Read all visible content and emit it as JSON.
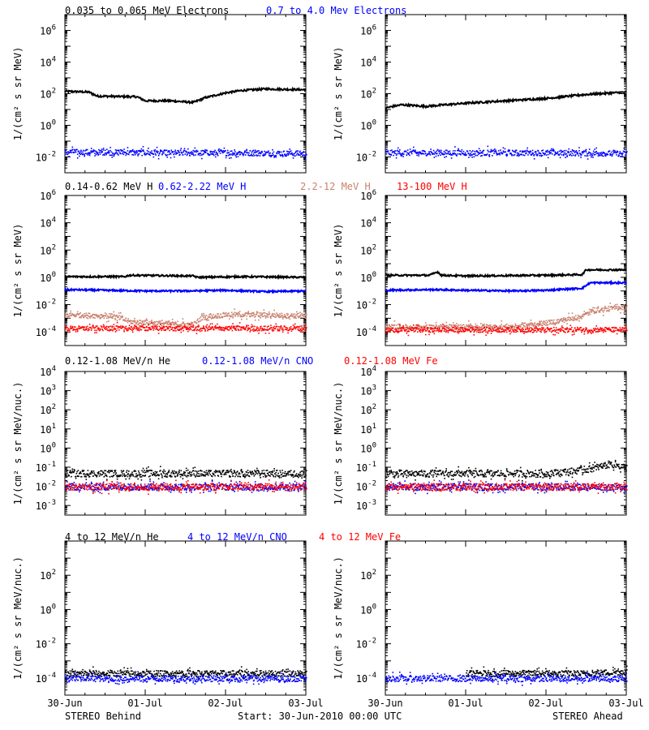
{
  "colors": {
    "black": "#000000",
    "blue": "#0000ff",
    "tan": "#c8826e",
    "red": "#ff0000"
  },
  "footer": {
    "left": "STEREO Behind",
    "center": "Start: 30-Jun-2010 00:00 UTC",
    "right": "STEREO Ahead"
  },
  "x_ticks": [
    "30-Jun",
    "01-Jul",
    "02-Jul",
    "03-Jul"
  ],
  "rows": [
    {
      "legend": [
        {
          "text": "0.035 to 0.065 MeV Electrons",
          "color": "black"
        },
        {
          "text": "0.7 to 4.0 Mev Electrons",
          "color": "blue"
        }
      ],
      "ylabel": "1/(cm² s sr MeV)",
      "ylog": [
        -3,
        7
      ],
      "ytick_exps": [
        -2,
        0,
        2,
        4,
        6
      ]
    },
    {
      "legend": [
        {
          "text": "0.14-0.62 MeV H",
          "color": "black"
        },
        {
          "text": "0.62-2.22 MeV H",
          "color": "blue"
        },
        {
          "text": "2.2-12 MeV H",
          "color": "tan"
        },
        {
          "text": "13-100 MeV H",
          "color": "red"
        }
      ],
      "ylabel": "1/(cm² s sr MeV)",
      "ylog": [
        -5,
        6
      ],
      "ytick_exps": [
        -4,
        -2,
        0,
        2,
        4,
        6
      ]
    },
    {
      "legend": [
        {
          "text": "0.12-1.08 MeV/n He",
          "color": "black"
        },
        {
          "text": "0.12-1.08 MeV/n CNO",
          "color": "blue"
        },
        {
          "text": "0.12-1.08 MeV Fe",
          "color": "red"
        }
      ],
      "ylabel": "1/(cm² s sr MeV/nuc.)",
      "ylog": [
        -3.5,
        4
      ],
      "ytick_exps": [
        -3,
        -2,
        -1,
        0,
        1,
        2,
        3,
        4
      ]
    },
    {
      "legend": [
        {
          "text": "4 to 12 MeV/n He",
          "color": "black"
        },
        {
          "text": "4 to 12 MeV/n CNO",
          "color": "blue"
        },
        {
          "text": "4 to 12 MeV Fe",
          "color": "red"
        }
      ],
      "ylabel": "1/(cm² s sr MeV/nuc.)",
      "ylog": [
        -5,
        4
      ],
      "ytick_exps": [
        -4,
        -2,
        0,
        2
      ]
    }
  ],
  "chart_data": [
    {
      "type": "scatter",
      "panel": "Behind electrons",
      "x_range_days": [
        0,
        3
      ],
      "ylog": [
        -3,
        7
      ],
      "series": [
        {
          "name": "0.035 to 0.065 MeV Electrons",
          "color": "black",
          "style": "line",
          "x": [
            0,
            0.3,
            0.4,
            0.9,
            1.0,
            1.3,
            1.6,
            1.75,
            2.0,
            2.2,
            2.5,
            3.0
          ],
          "log10_y": [
            2.15,
            2.1,
            1.85,
            1.8,
            1.55,
            1.55,
            1.45,
            1.75,
            2.05,
            2.2,
            2.3,
            2.25
          ]
        },
        {
          "name": "0.7 to 4.0 Mev Electrons",
          "color": "blue",
          "style": "scatter",
          "x": [
            0,
            1,
            2,
            3
          ],
          "log10_y": [
            -1.65,
            -1.7,
            -1.7,
            -1.75
          ]
        }
      ]
    },
    {
      "type": "scatter",
      "panel": "Ahead electrons",
      "x_range_days": [
        0,
        3
      ],
      "ylog": [
        -3,
        7
      ],
      "series": [
        {
          "name": "0.035 to 0.065 MeV Electrons",
          "color": "black",
          "style": "line",
          "x": [
            0,
            0.2,
            0.5,
            1.0,
            1.5,
            2.0,
            2.5,
            3.0
          ],
          "log10_y": [
            1.1,
            1.3,
            1.2,
            1.4,
            1.55,
            1.7,
            1.95,
            2.1
          ]
        },
        {
          "name": "0.7 to 4.0 Mev Electrons",
          "color": "blue",
          "style": "scatter",
          "x": [
            0,
            1,
            2,
            3
          ],
          "log10_y": [
            -1.7,
            -1.7,
            -1.7,
            -1.75
          ]
        }
      ]
    },
    {
      "type": "scatter",
      "panel": "Behind H",
      "x_range_days": [
        0,
        3
      ],
      "ylog": [
        -5,
        6
      ],
      "series": [
        {
          "name": "0.14-0.62 MeV H",
          "color": "black",
          "style": "line",
          "x": [
            0,
            0.75,
            0.8,
            1.6,
            1.65,
            2.2,
            3.0
          ],
          "log10_y": [
            0.05,
            0.05,
            0.15,
            0.1,
            0.0,
            0.05,
            0.0
          ]
        },
        {
          "name": "0.62-2.22 MeV H",
          "color": "blue",
          "style": "line",
          "x": [
            0,
            0.5,
            1.0,
            1.5,
            2.0,
            2.5,
            3.0
          ],
          "log10_y": [
            -0.9,
            -0.95,
            -1.0,
            -1.0,
            -0.95,
            -1.05,
            -1.0
          ]
        },
        {
          "name": "2.2-12 MeV H",
          "color": "tan",
          "style": "scatter",
          "x": [
            0,
            0.6,
            0.8,
            1.4,
            1.6,
            1.7,
            2.0,
            2.4,
            3.0
          ],
          "log10_y": [
            -2.7,
            -2.8,
            -3.2,
            -3.4,
            -3.4,
            -2.9,
            -2.7,
            -2.7,
            -2.8
          ]
        },
        {
          "name": "13-100 MeV H",
          "color": "red",
          "style": "scatter",
          "x": [
            0,
            1,
            2,
            3
          ],
          "log10_y": [
            -3.7,
            -3.7,
            -3.7,
            -3.7
          ]
        }
      ]
    },
    {
      "type": "scatter",
      "panel": "Ahead H",
      "x_range_days": [
        0,
        3
      ],
      "ylog": [
        -5,
        6
      ],
      "series": [
        {
          "name": "0.14-0.62 MeV H",
          "color": "black",
          "style": "line",
          "x": [
            0,
            0.55,
            0.65,
            0.7,
            1.0,
            2.0,
            2.45,
            2.5,
            2.7,
            3.0
          ],
          "log10_y": [
            0.15,
            0.15,
            0.4,
            0.15,
            0.1,
            0.15,
            0.2,
            0.55,
            0.55,
            0.55
          ]
        },
        {
          "name": "0.62-2.22 MeV H",
          "color": "blue",
          "style": "line",
          "x": [
            0,
            0.6,
            1.0,
            1.6,
            2.0,
            2.45,
            2.55,
            3.0
          ],
          "log10_y": [
            -0.95,
            -0.9,
            -0.95,
            -1.0,
            -0.95,
            -0.8,
            -0.4,
            -0.4
          ]
        },
        {
          "name": "2.2-12 MeV H",
          "color": "tan",
          "style": "scatter",
          "x": [
            0,
            1.0,
            1.6,
            2.0,
            2.4,
            2.6,
            3.0
          ],
          "log10_y": [
            -3.6,
            -3.6,
            -3.55,
            -3.3,
            -2.9,
            -2.4,
            -2.1
          ]
        },
        {
          "name": "13-100 MeV H",
          "color": "red",
          "style": "scatter",
          "x": [
            0,
            1,
            2,
            3
          ],
          "log10_y": [
            -3.8,
            -3.8,
            -3.8,
            -3.8
          ]
        }
      ]
    },
    {
      "type": "scatter",
      "panel": "Behind 0.12-1.08 MeV/n",
      "x_range_days": [
        0,
        3
      ],
      "ylog": [
        -3.5,
        4
      ],
      "series": [
        {
          "name": "0.12-1.08 MeV/n He",
          "color": "black",
          "style": "scatter",
          "x": [
            0,
            1,
            2,
            3
          ],
          "log10_y": [
            -1.3,
            -1.3,
            -1.3,
            -1.3
          ]
        },
        {
          "name": "0.12-1.08 MeV/n CNO",
          "color": "blue",
          "style": "scatter",
          "x": [
            0,
            1,
            2,
            3
          ],
          "log10_y": [
            -2.0,
            -2.0,
            -2.0,
            -2.0
          ]
        },
        {
          "name": "0.12-1.08 MeV Fe",
          "color": "red",
          "style": "scatter",
          "x": [
            0,
            1,
            2,
            3
          ],
          "log10_y": [
            -2.0,
            -2.0,
            -2.0,
            -2.0
          ]
        }
      ]
    },
    {
      "type": "scatter",
      "panel": "Ahead 0.12-1.08 MeV/n",
      "x_range_days": [
        0,
        3
      ],
      "ylog": [
        -3.5,
        4
      ],
      "series": [
        {
          "name": "0.12-1.08 MeV/n He",
          "color": "black",
          "style": "scatter",
          "x": [
            0,
            1,
            2,
            2.5,
            2.8,
            3.0
          ],
          "log10_y": [
            -1.3,
            -1.3,
            -1.3,
            -1.1,
            -0.8,
            -1.0
          ]
        },
        {
          "name": "0.12-1.08 MeV/n CNO",
          "color": "blue",
          "style": "scatter",
          "x": [
            0,
            1,
            2,
            3
          ],
          "log10_y": [
            -2.0,
            -2.0,
            -2.0,
            -2.0
          ]
        },
        {
          "name": "0.12-1.08 MeV Fe",
          "color": "red",
          "style": "scatter",
          "x": [
            0,
            1,
            2,
            3
          ],
          "log10_y": [
            -2.0,
            -2.0,
            -2.0,
            -2.0
          ]
        }
      ]
    },
    {
      "type": "scatter",
      "panel": "Behind 4-12 MeV/n",
      "x_range_days": [
        0,
        3
      ],
      "ylog": [
        -5,
        4
      ],
      "series": [
        {
          "name": "4 to 12 MeV/n He",
          "color": "black",
          "style": "scatter",
          "x": [
            0,
            1,
            2,
            3
          ],
          "log10_y": [
            -3.7,
            -3.7,
            -3.7,
            -3.7
          ]
        },
        {
          "name": "4 to 12 MeV/n CNO",
          "color": "blue",
          "style": "scatter",
          "x": [
            0,
            1,
            2,
            3
          ],
          "log10_y": [
            -4.0,
            -4.0,
            -4.0,
            -4.0
          ]
        },
        {
          "name": "4 to 12 MeV Fe",
          "color": "red",
          "style": "scatter",
          "x": [],
          "log10_y": []
        }
      ]
    },
    {
      "type": "scatter",
      "panel": "Ahead 4-12 MeV/n",
      "x_range_days": [
        0,
        3
      ],
      "ylog": [
        -5,
        4
      ],
      "series": [
        {
          "name": "4 to 12 MeV/n He",
          "color": "black",
          "style": "scatter",
          "x": [
            1.0,
            2.0,
            2.5,
            3.0
          ],
          "log10_y": [
            -3.7,
            -3.7,
            -3.7,
            -3.6
          ]
        },
        {
          "name": "4 to 12 MeV/n CNO",
          "color": "blue",
          "style": "scatter",
          "x": [
            0,
            1,
            2,
            3
          ],
          "log10_y": [
            -4.0,
            -4.0,
            -4.0,
            -4.0
          ]
        },
        {
          "name": "4 to 12 MeV Fe",
          "color": "red",
          "style": "scatter",
          "x": [],
          "log10_y": []
        }
      ]
    }
  ]
}
